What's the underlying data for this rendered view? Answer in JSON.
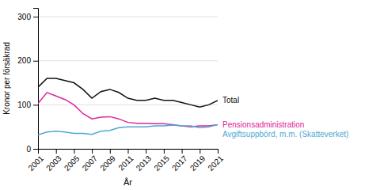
{
  "chart_data": {
    "type": "line",
    "x": [
      2001,
      2002,
      2003,
      2004,
      2005,
      2006,
      2007,
      2008,
      2009,
      2010,
      2011,
      2012,
      2013,
      2014,
      2015,
      2016,
      2017,
      2018,
      2019,
      2020,
      2021
    ],
    "xlabel": "År",
    "ylabel": "Kronor per försäkrad",
    "xlim": [
      2001,
      2021
    ],
    "xticks": [
      2001,
      2003,
      2005,
      2007,
      2009,
      2011,
      2013,
      2015,
      2017,
      2019,
      2021
    ],
    "ylim": [
      0,
      320
    ],
    "yticks": [
      0,
      100,
      200,
      300
    ],
    "grid": true,
    "legend": "right",
    "series": [
      {
        "name": "Total",
        "color": "#111111",
        "values": [
          140,
          160,
          160,
          155,
          150,
          135,
          115,
          130,
          135,
          128,
          115,
          110,
          110,
          115,
          110,
          110,
          105,
          100,
          95,
          100,
          110
        ]
      },
      {
        "name": "Pensionsadministration",
        "color": "#e0259a",
        "values": [
          103,
          128,
          120,
          112,
          100,
          80,
          68,
          72,
          73,
          68,
          60,
          58,
          58,
          57,
          57,
          55,
          52,
          50,
          52,
          52,
          55
        ]
      },
      {
        "name": "Avgiftsuppbörd, m.m. (Skatteverket)",
        "color": "#4fa8d5",
        "values": [
          32,
          38,
          40,
          38,
          35,
          35,
          33,
          40,
          42,
          48,
          50,
          50,
          50,
          52,
          52,
          54,
          52,
          52,
          48,
          50,
          55
        ]
      }
    ]
  }
}
